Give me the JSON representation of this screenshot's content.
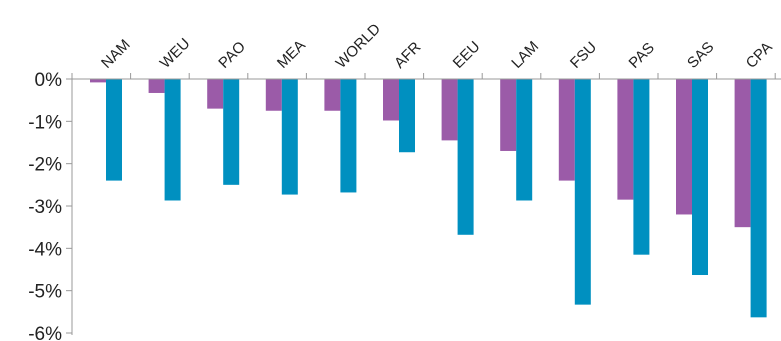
{
  "chart_data": {
    "type": "bar",
    "title": "",
    "xlabel": "",
    "ylabel": "",
    "ylim": [
      -6,
      0
    ],
    "y_ticks": [
      0,
      -1,
      -2,
      -3,
      -4,
      -5,
      -6
    ],
    "y_tick_labels": [
      "0%",
      "-1%",
      "-2%",
      "-3%",
      "-4%",
      "-5%",
      "-6%"
    ],
    "x_axis_position": "top",
    "legend": "none",
    "grid": false,
    "categories": [
      "NAM",
      "WEU",
      "PAO",
      "MEA",
      "WORLD",
      "AFR",
      "EEU",
      "LAM",
      "FSU",
      "PAS",
      "SAS",
      "CPA"
    ],
    "series": [
      {
        "color": "#9b5ba8",
        "values": [
          -0.08,
          -0.33,
          -0.7,
          -0.75,
          -0.75,
          -0.98,
          -1.45,
          -1.7,
          -2.4,
          -2.85,
          -3.2,
          -3.5
        ]
      },
      {
        "color": "#0090c0",
        "values": [
          -2.4,
          -2.87,
          -2.5,
          -2.73,
          -2.68,
          -1.73,
          -3.68,
          -2.87,
          -5.33,
          -4.15,
          -4.63,
          -5.63
        ]
      }
    ]
  }
}
